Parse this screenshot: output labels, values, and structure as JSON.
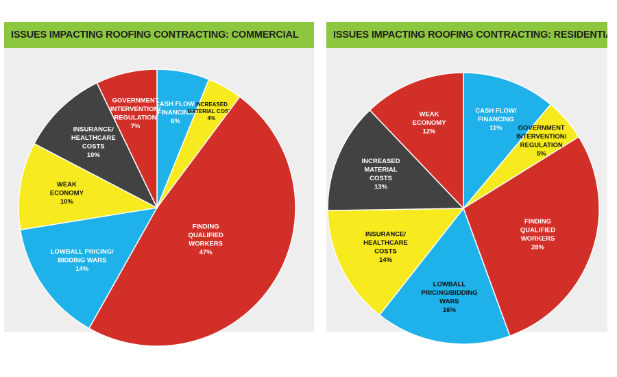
{
  "colors": {
    "banner": "#8dc63f",
    "red": "#d22f29",
    "blue": "#1fb1e9",
    "yellow": "#f7ea1e",
    "dark": "#424242",
    "border": "#ffffff"
  },
  "chart_data": [
    {
      "type": "pie",
      "title": "ISSUES IMPACTING ROOFING CONTRACTING: COMMERCIAL",
      "slices": [
        {
          "label": [
            "CASH FLOW/",
            "FINANCING"
          ],
          "value": 6,
          "value_label": "6%",
          "color": "blue",
          "text_color": "#ffffff"
        },
        {
          "label": [
            "INCREASED",
            "MATERIAL COSTS"
          ],
          "value": 4,
          "value_label": "4%",
          "color": "yellow",
          "text_color": "#111111"
        },
        {
          "label": [
            "FINDING",
            "QUALIFIED",
            "WORKERS"
          ],
          "value": 47,
          "value_label": "47%",
          "color": "red",
          "text_color": "#ffffff"
        },
        {
          "label": [
            "LOWBALL PRICING/",
            "BIDDING WARS"
          ],
          "value": 14,
          "value_label": "14%",
          "color": "blue",
          "text_color": "#ffffff"
        },
        {
          "label": [
            "WEAK",
            "ECONOMY"
          ],
          "value": 10,
          "value_label": "10%",
          "color": "yellow",
          "text_color": "#111111"
        },
        {
          "label": [
            "INSURANCE/",
            "HEALTHCARE",
            "COSTS"
          ],
          "value": 10,
          "value_label": "10%",
          "color": "dark",
          "text_color": "#ffffff"
        },
        {
          "label": [
            "GOVERNMENT",
            "INTERVENTION/",
            "REGULATION"
          ],
          "value": 7,
          "value_label": "7%",
          "color": "red",
          "text_color": "#ffffff"
        }
      ]
    },
    {
      "type": "pie",
      "title": "ISSUES IMPACTING ROOFING CONTRACTING: RESIDENTIAL",
      "slices": [
        {
          "label": [
            "CASH FLOW/",
            "FINANCING"
          ],
          "value": 11,
          "value_label": "11%",
          "color": "blue",
          "text_color": "#ffffff"
        },
        {
          "label": [
            "GOVERNMENT",
            "INTERVENTION/",
            "REGULATION"
          ],
          "value": 5,
          "value_label": "5%",
          "color": "yellow",
          "text_color": "#111111"
        },
        {
          "label": [
            "FINDING",
            "QUALIFIED",
            "WORKERS"
          ],
          "value": 28,
          "value_label": "28%",
          "color": "red",
          "text_color": "#ffffff"
        },
        {
          "label": [
            "LOWBALL",
            "PRICING/BIDDING",
            "WARS"
          ],
          "value": 16,
          "value_label": "16%",
          "color": "blue",
          "text_color": "#111111"
        },
        {
          "label": [
            "INSURANCE/",
            "HEALTHCARE",
            "COSTS"
          ],
          "value": 14,
          "value_label": "14%",
          "color": "yellow",
          "text_color": "#111111"
        },
        {
          "label": [
            "INCREASED",
            "MATERIAL",
            "COSTS"
          ],
          "value": 13,
          "value_label": "13%",
          "color": "dark",
          "text_color": "#ffffff"
        },
        {
          "label": [
            "WEAK",
            "ECONOMY"
          ],
          "value": 12,
          "value_label": "12%",
          "color": "red",
          "text_color": "#ffffff"
        }
      ]
    }
  ]
}
